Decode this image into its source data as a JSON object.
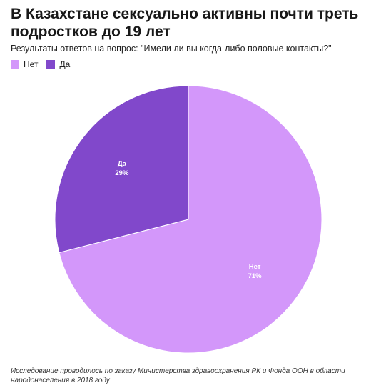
{
  "header": {
    "title": "В Казахстане сексуально активны почти треть подростков до 19 лет",
    "subtitle": "Результаты ответов на вопрос: \"Имели ли вы когда-либо половые контакты?\""
  },
  "legend": {
    "items": [
      {
        "label": "Нет",
        "color": "#d397fa"
      },
      {
        "label": "Да",
        "color": "#8148cb"
      }
    ]
  },
  "chart_data": {
    "type": "pie",
    "categories": [
      "Нет",
      "Да"
    ],
    "values": [
      71,
      29
    ],
    "value_labels": [
      "71%",
      "29%"
    ],
    "colors": [
      "#d397fa",
      "#8148cb"
    ],
    "legend_position": "top-left",
    "start": "top, clockwise"
  },
  "footer": {
    "note": "Исследование проводилось по заказу Министерства здравоохранения РК и Фонда ООН в области народонаселения в 2018 году"
  }
}
